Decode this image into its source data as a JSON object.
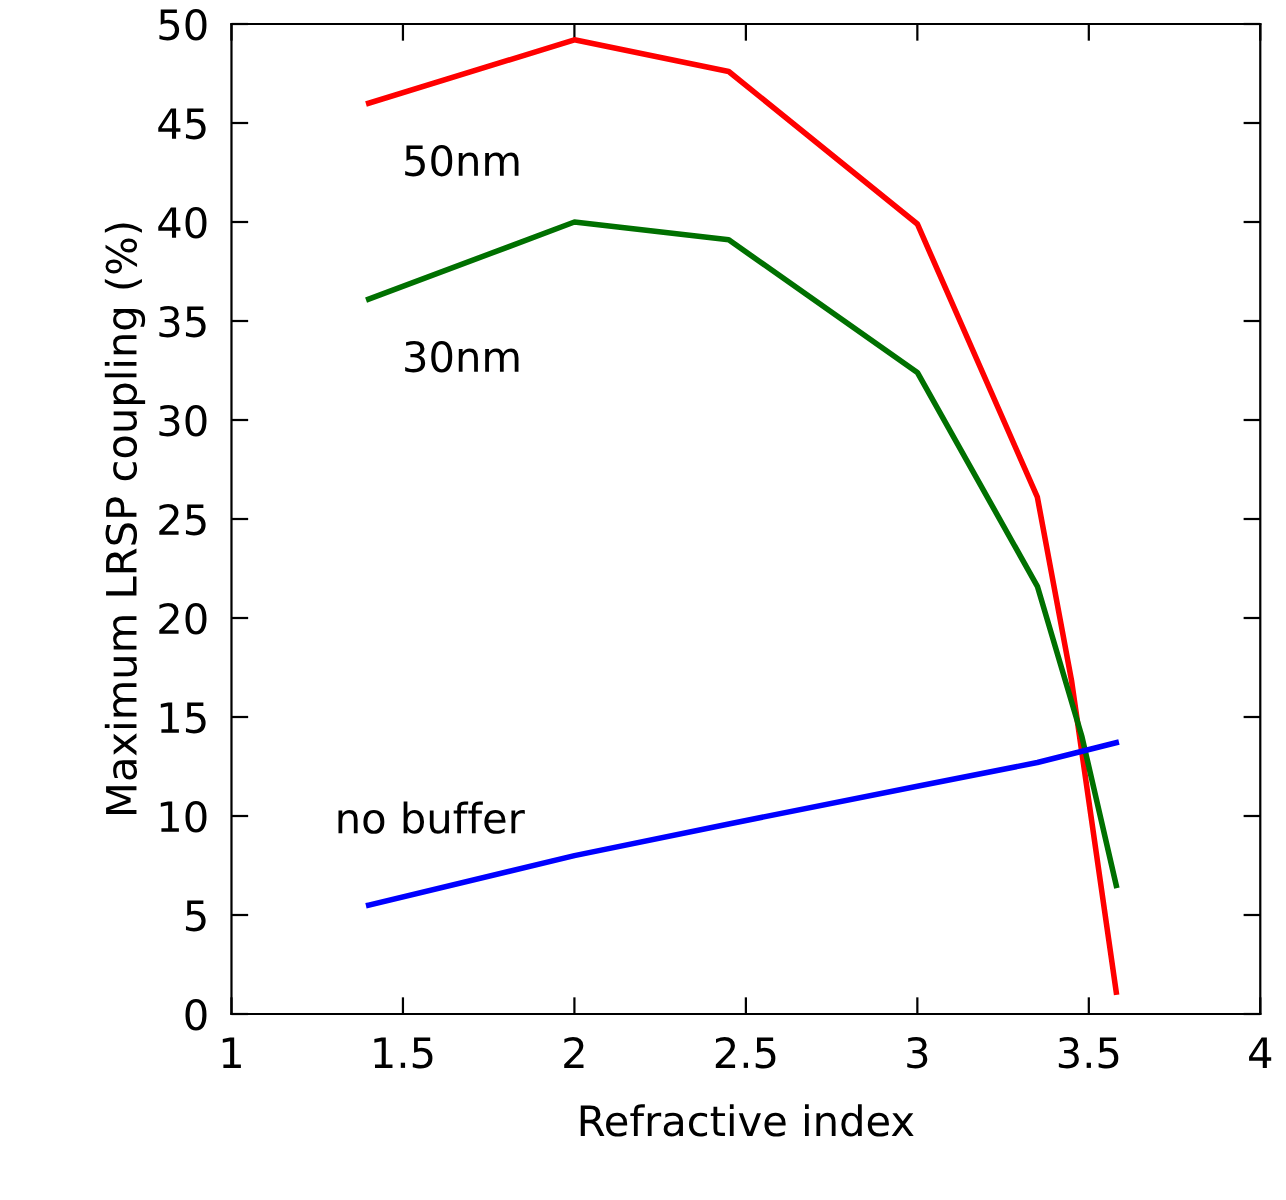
{
  "chart_data": {
    "type": "line",
    "xlabel": "Refractive index",
    "ylabel": "Maximum LRSP coupling (%)",
    "xlim": [
      1,
      4
    ],
    "xticks": [
      1,
      1.5,
      2,
      2.5,
      3,
      3.5,
      4
    ],
    "ylim": [
      0,
      50
    ],
    "yticks": [
      0,
      5,
      10,
      15,
      20,
      25,
      30,
      35,
      40,
      45,
      50
    ],
    "grid": false,
    "legend": false,
    "marker": "none",
    "line_style": "solid",
    "series": [
      {
        "name": "50nm",
        "color": "#ff0000",
        "x": [
          1.4,
          2,
          2.45,
          3,
          3.35,
          3.45,
          3.58
        ],
        "values": [
          46,
          49.2,
          47.6,
          39.9,
          26.1,
          16.8,
          1.1
        ]
      },
      {
        "name": "30nm",
        "color": "#007000",
        "x": [
          1.4,
          2,
          2.45,
          3,
          3.35,
          3.48,
          3.58
        ],
        "values": [
          36.1,
          40,
          39.1,
          32.4,
          21.6,
          14,
          6.5
        ]
      },
      {
        "name": "no buffer",
        "color": "#0000ff",
        "x": [
          1.4,
          2,
          2.45,
          3,
          3.35,
          3.58
        ],
        "values": [
          5.5,
          8,
          9.6,
          11.5,
          12.7,
          13.7
        ]
      }
    ]
  }
}
